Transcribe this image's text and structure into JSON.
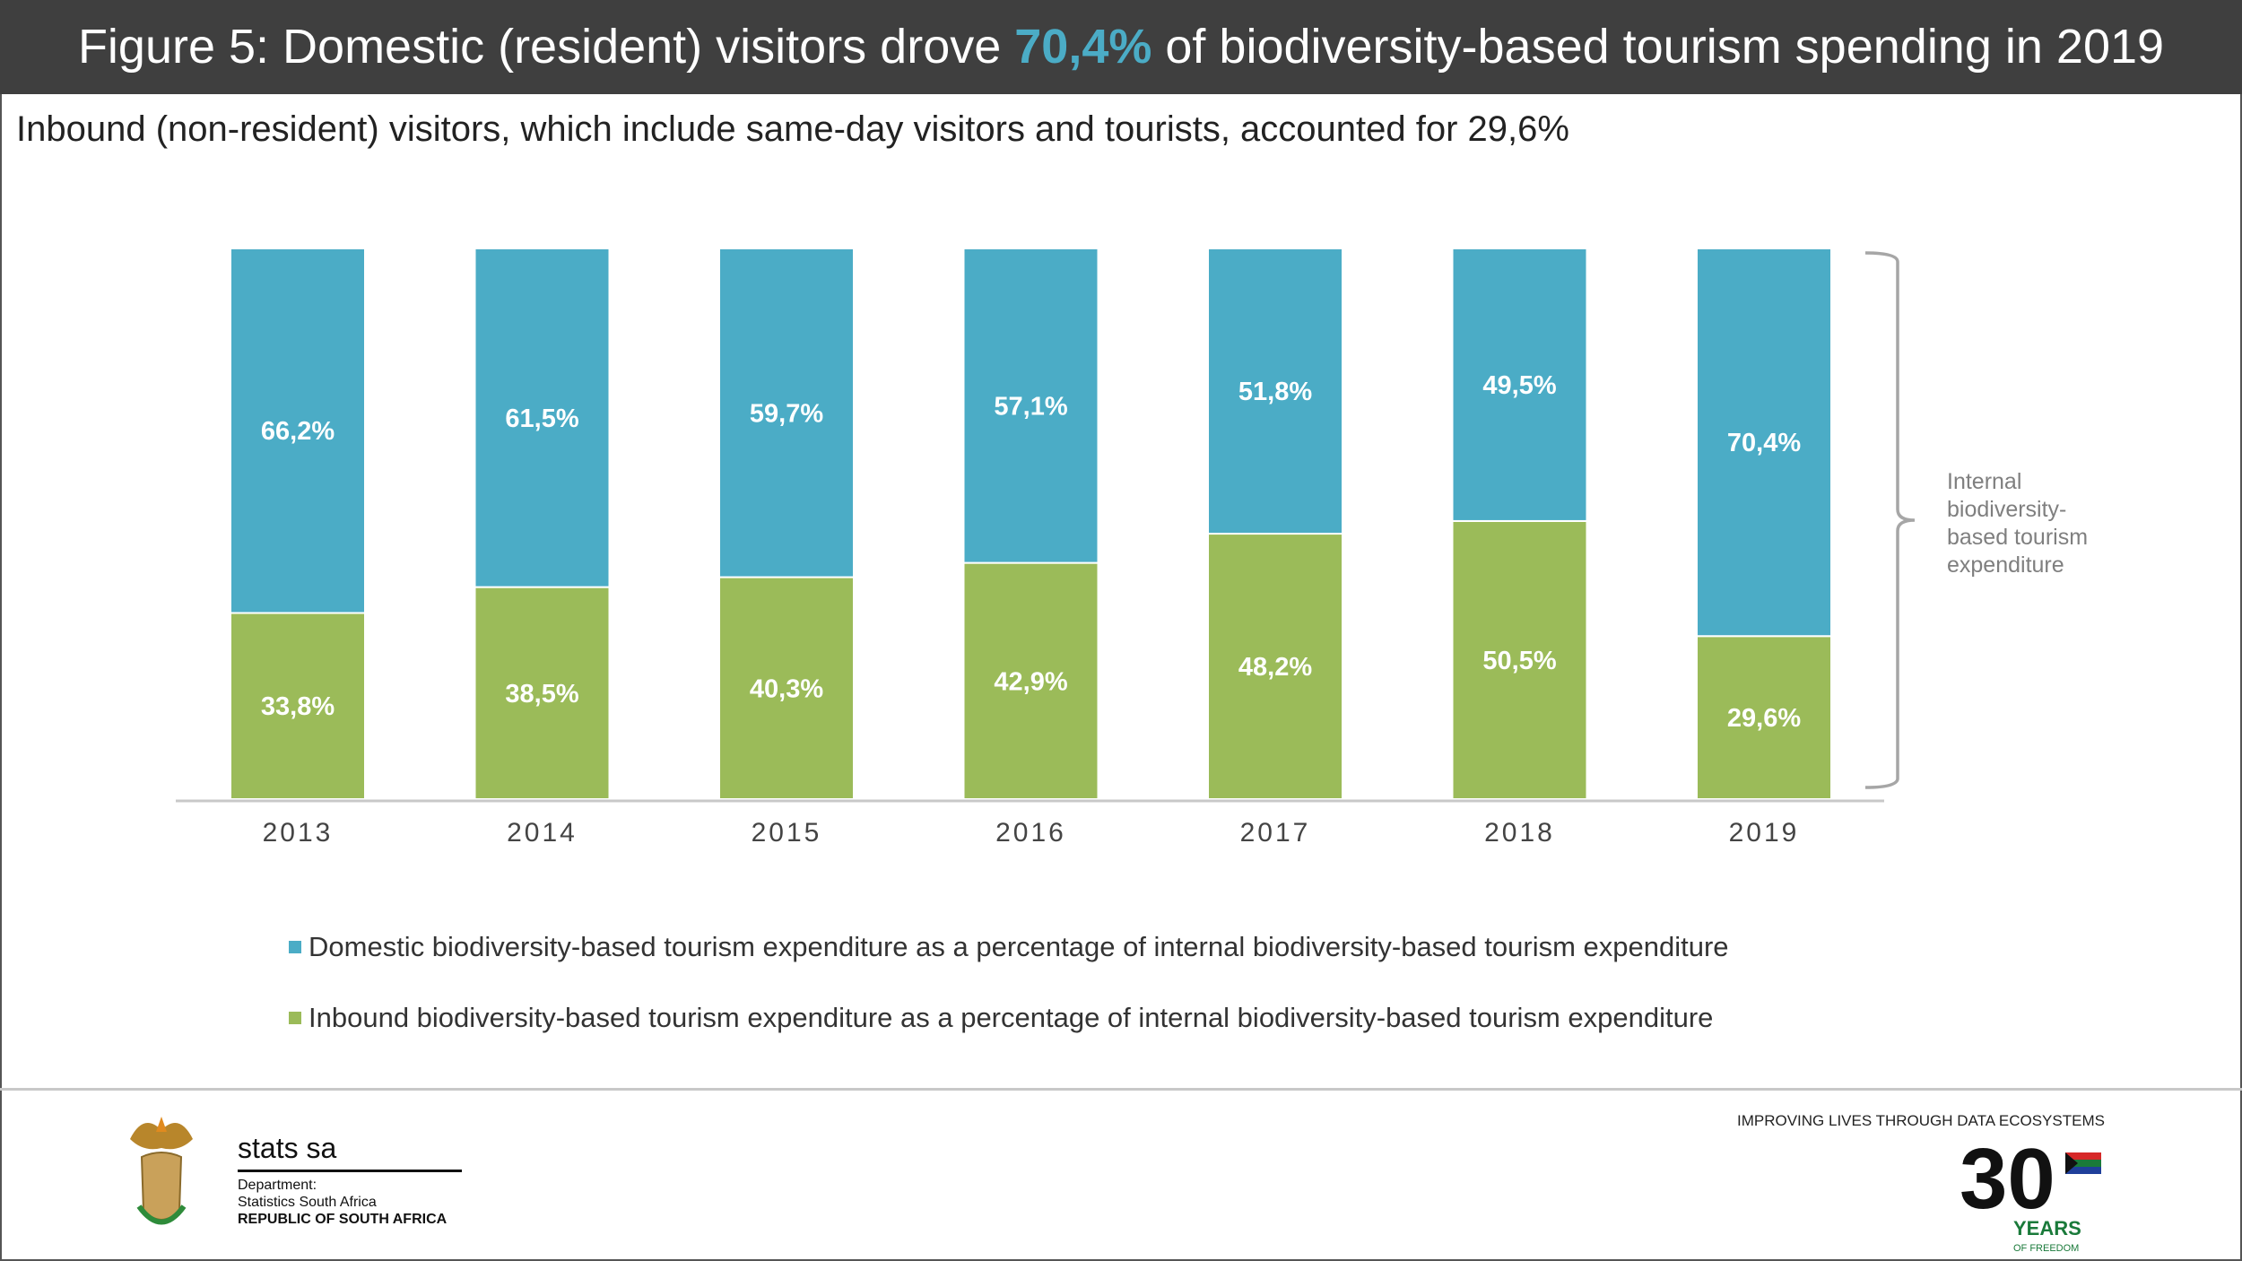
{
  "header": {
    "title_before": "Figure 5: Domestic (resident) visitors drove ",
    "title_highlight": "70,4%",
    "title_after": " of biodiversity-based tourism spending in 2019"
  },
  "subtitle": "Inbound (non-resident) visitors, which include same-day visitors and tourists, accounted for 29,6%",
  "chart_data": {
    "type": "bar",
    "stacked": true,
    "categories": [
      "2013",
      "2014",
      "2015",
      "2016",
      "2017",
      "2018",
      "2019"
    ],
    "series": [
      {
        "name": "Inbound biodiversity-based tourism expenditure as a percentage of internal biodiversity-based tourism expenditure",
        "color": "#9bbb59",
        "values": [
          33.8,
          38.5,
          40.3,
          42.9,
          48.2,
          50.5,
          29.6
        ],
        "labels": [
          "33,8%",
          "38,5%",
          "40,3%",
          "42,9%",
          "48,2%",
          "50,5%",
          "29,6%"
        ]
      },
      {
        "name": "Domestic biodiversity-based tourism expenditure as a percentage of internal biodiversity-based tourism expenditure",
        "color": "#4bacc6",
        "values": [
          66.2,
          61.5,
          59.7,
          57.1,
          51.8,
          49.5,
          70.4
        ],
        "labels": [
          "66,2%",
          "61,5%",
          "59,7%",
          "57,1%",
          "51,8%",
          "49,5%",
          "70,4%"
        ]
      }
    ],
    "ylim": [
      0,
      100
    ],
    "bracket_annotation": [
      "Internal",
      "biodiversity-",
      "based tourism",
      "expenditure"
    ],
    "legend_placement": "bottom"
  },
  "footer": {
    "org_name": "stats sa",
    "dept_label": "Department:",
    "dept_name": "Statistics South Africa",
    "country": "REPUBLIC OF SOUTH AFRICA",
    "tagline": "IMPROVING LIVES THROUGH DATA ECOSYSTEMS",
    "anniversary_number": "30",
    "anniversary_years": "YEARS",
    "anniversary_sub": "OF FREEDOM"
  }
}
